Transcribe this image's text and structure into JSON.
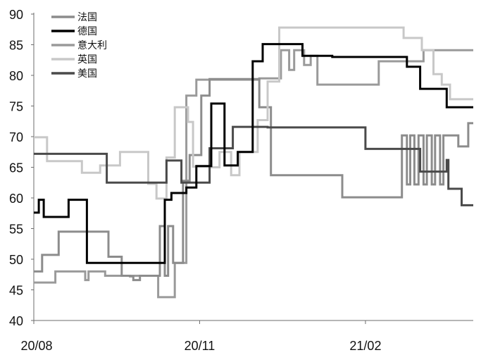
{
  "chart_data": {
    "type": "line",
    "ylim": [
      40,
      90
    ],
    "y_ticks": [
      40,
      45,
      50,
      55,
      60,
      65,
      70,
      75,
      80,
      85,
      90
    ],
    "x_range": [
      0,
      26.5
    ],
    "x_ticks": [
      {
        "label": "20/08",
        "x": 0
      },
      {
        "label": "20/11",
        "x": 10
      },
      {
        "label": "21/02",
        "x": 20
      }
    ],
    "grid": false,
    "legend_position": "top-left",
    "series": [
      {
        "name": "法国",
        "color": "#8c8c8c",
        "step": true,
        "points": [
          [
            0,
            48.0
          ],
          [
            0.5,
            50.7
          ],
          [
            1.5,
            54.5
          ],
          [
            4.5,
            50.4
          ],
          [
            5.3,
            47.3
          ],
          [
            5.8,
            47.2
          ],
          [
            6.0,
            46.6
          ],
          [
            6.4,
            47.3
          ],
          [
            7.6,
            55.4
          ],
          [
            7.9,
            47.3
          ],
          [
            8.1,
            55.4
          ],
          [
            8.4,
            49.4
          ],
          [
            9.0,
            62.8
          ],
          [
            9.4,
            67.0
          ],
          [
            10.1,
            76.7
          ],
          [
            10.6,
            79.4
          ],
          [
            13.6,
            74.8
          ],
          [
            14.3,
            63.7
          ],
          [
            18.6,
            60.1
          ],
          [
            22.2,
            70.2
          ],
          [
            22.5,
            62.2
          ],
          [
            22.7,
            70.2
          ],
          [
            22.95,
            62.2
          ],
          [
            23.2,
            70.2
          ],
          [
            23.5,
            62.2
          ],
          [
            23.7,
            70.2
          ],
          [
            24.0,
            62.2
          ],
          [
            24.2,
            70.2
          ],
          [
            24.5,
            62.2
          ],
          [
            24.7,
            70.2
          ],
          [
            25.6,
            68.4
          ],
          [
            26.2,
            72.2
          ]
        ]
      },
      {
        "name": "德国",
        "color": "#000000",
        "step": true,
        "points": [
          [
            0,
            57.6
          ],
          [
            0.3,
            59.7
          ],
          [
            0.6,
            56.9
          ],
          [
            2.1,
            59.7
          ],
          [
            3.2,
            49.4
          ],
          [
            7.9,
            59.7
          ],
          [
            8.3,
            60.8
          ],
          [
            9.2,
            61.7
          ],
          [
            9.8,
            65.2
          ],
          [
            10.7,
            75.4
          ],
          [
            11.5,
            65.3
          ],
          [
            12.3,
            67.5
          ],
          [
            13.2,
            82.3
          ],
          [
            13.8,
            85.1
          ],
          [
            16.2,
            83.2
          ],
          [
            18.0,
            83.0
          ],
          [
            22.5,
            81.4
          ],
          [
            23.3,
            77.8
          ],
          [
            24.9,
            74.8
          ]
        ]
      },
      {
        "name": "意大利",
        "color": "#9a9a9a",
        "step": true,
        "points": [
          [
            0,
            46.2
          ],
          [
            1.3,
            48.0
          ],
          [
            3.1,
            46.6
          ],
          [
            3.3,
            48.0
          ],
          [
            4.3,
            47.3
          ],
          [
            6.0,
            47.3
          ],
          [
            7.5,
            43.8
          ],
          [
            8.5,
            49.4
          ],
          [
            9.2,
            76.7
          ],
          [
            9.8,
            79.3
          ],
          [
            13.6,
            79.5
          ],
          [
            14.9,
            84.1
          ],
          [
            15.4,
            80.9
          ],
          [
            15.7,
            84.1
          ],
          [
            16.3,
            81.7
          ],
          [
            16.7,
            83.2
          ],
          [
            17.1,
            78.5
          ],
          [
            19.2,
            78.5
          ],
          [
            20.8,
            82.3
          ],
          [
            23.5,
            84.1
          ]
        ]
      },
      {
        "name": "英国",
        "color": "#c8c8c8",
        "step": true,
        "points": [
          [
            0,
            69.9
          ],
          [
            0.8,
            66.0
          ],
          [
            2.9,
            64.1
          ],
          [
            4.0,
            65.3
          ],
          [
            5.2,
            67.5
          ],
          [
            6.9,
            62.3
          ],
          [
            7.4,
            59.9
          ],
          [
            8.0,
            66.6
          ],
          [
            8.5,
            74.8
          ],
          [
            9.3,
            72.4
          ],
          [
            9.6,
            65.1
          ],
          [
            10.6,
            65.0
          ],
          [
            11.2,
            67.5
          ],
          [
            11.9,
            63.7
          ],
          [
            12.4,
            67.5
          ],
          [
            13.5,
            72.7
          ],
          [
            14.1,
            79.0
          ],
          [
            14.8,
            87.8
          ],
          [
            19.2,
            87.8
          ],
          [
            22.3,
            86.1
          ],
          [
            23.4,
            84.1
          ],
          [
            24.1,
            80.2
          ],
          [
            24.6,
            78.5
          ],
          [
            25.1,
            76.1
          ],
          [
            25.9,
            76.1
          ]
        ]
      },
      {
        "name": "美国",
        "color": "#4a4a4a",
        "step": true,
        "points": [
          [
            0,
            67.2
          ],
          [
            4.4,
            62.5
          ],
          [
            8.0,
            66.1
          ],
          [
            8.9,
            62.5
          ],
          [
            10.6,
            68.1
          ],
          [
            12.0,
            71.6
          ],
          [
            14.1,
            71.5
          ],
          [
            20.0,
            68.0
          ],
          [
            23.3,
            64.3
          ],
          [
            24.9,
            66.2
          ],
          [
            25.0,
            61.5
          ],
          [
            25.8,
            58.8
          ],
          [
            25.85,
            58.8
          ]
        ]
      }
    ]
  }
}
